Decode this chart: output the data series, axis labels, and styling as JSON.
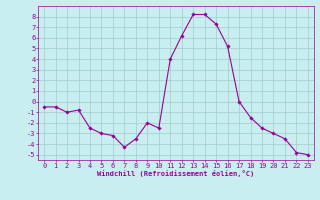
{
  "x": [
    0,
    1,
    2,
    3,
    4,
    5,
    6,
    7,
    8,
    9,
    10,
    11,
    12,
    13,
    14,
    15,
    16,
    17,
    18,
    19,
    20,
    21,
    22,
    23
  ],
  "y": [
    -0.5,
    -0.5,
    -1.0,
    -0.8,
    -2.5,
    -3.0,
    -3.2,
    -4.3,
    -3.5,
    -2.0,
    -2.5,
    4.0,
    6.2,
    8.2,
    8.2,
    7.3,
    5.2,
    0.0,
    -1.5,
    -2.5,
    -3.0,
    -3.5,
    -4.8,
    -5.0
  ],
  "line_color": "#990099",
  "marker": "D",
  "markersize": 1.8,
  "linewidth": 0.8,
  "bg_color": "#C8EEF0",
  "grid_color": "#A0CCCC",
  "xlabel": "Windchill (Refroidissement éolien,°C)",
  "xlabel_color": "#990099",
  "xlabel_fontsize": 5.0,
  "tick_color": "#990099",
  "tick_fontsize": 5.0,
  "ylim": [
    -5.5,
    9.0
  ],
  "xlim": [
    -0.5,
    23.5
  ],
  "yticks": [
    -5,
    -4,
    -3,
    -2,
    -1,
    0,
    1,
    2,
    3,
    4,
    5,
    6,
    7,
    8
  ],
  "xticks": [
    0,
    1,
    2,
    3,
    4,
    5,
    6,
    7,
    8,
    9,
    10,
    11,
    12,
    13,
    14,
    15,
    16,
    17,
    18,
    19,
    20,
    21,
    22,
    23
  ]
}
